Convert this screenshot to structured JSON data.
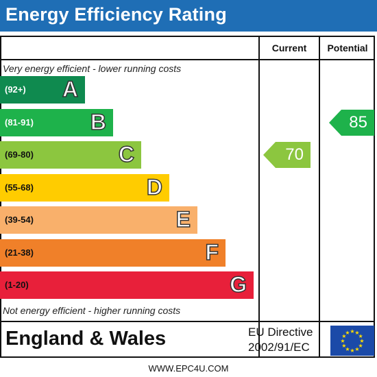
{
  "title": "Energy Efficiency Rating",
  "columns": {
    "current": "Current",
    "potential": "Potential"
  },
  "notes": {
    "top": "Very energy efficient - lower running costs",
    "bottom": "Not energy efficient - higher running costs"
  },
  "footer": {
    "country": "England & Wales",
    "directive_line1": "EU Directive",
    "directive_line2": "2002/91/EC",
    "website": "WWW.EPC4U.COM"
  },
  "colors": {
    "title_bar": "#1f6eb5",
    "eu_flag": "#1b4aa8",
    "eu_stars": "#ffdd00"
  },
  "chart_data": {
    "type": "bar",
    "title": "Energy Efficiency Rating",
    "bands": [
      {
        "letter": "A",
        "range": "(92+)",
        "color": "#0f8a4f",
        "range_text_light": true
      },
      {
        "letter": "B",
        "range": "(81-91)",
        "color": "#1eb24b",
        "range_text_light": true
      },
      {
        "letter": "C",
        "range": "(69-80)",
        "color": "#8cc63f",
        "range_text_light": false
      },
      {
        "letter": "D",
        "range": "(55-68)",
        "color": "#ffcc00",
        "range_text_light": false
      },
      {
        "letter": "E",
        "range": "(39-54)",
        "color": "#f9b06b",
        "range_text_light": false
      },
      {
        "letter": "F",
        "range": "(21-38)",
        "color": "#f08029",
        "range_text_light": false
      },
      {
        "letter": "G",
        "range": "(1-20)",
        "color": "#e8203a",
        "range_text_light": false
      }
    ],
    "current": {
      "value": 70,
      "band": "C",
      "color": "#8cc63f"
    },
    "potential": {
      "value": 85,
      "band": "B",
      "color": "#1eb24b"
    }
  }
}
